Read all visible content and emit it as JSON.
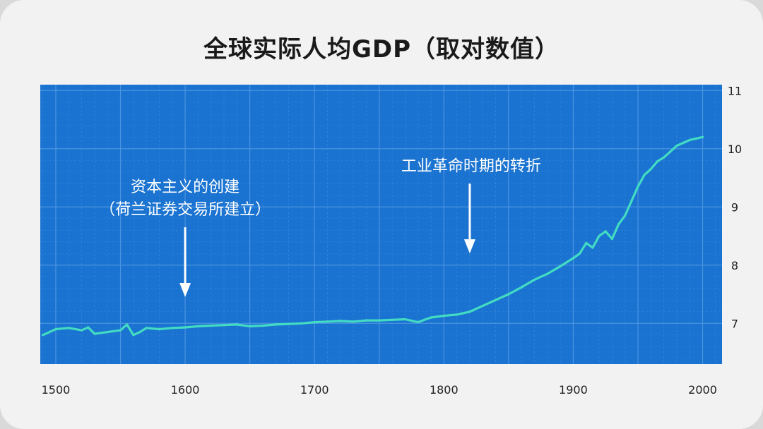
{
  "colors": {
    "plot_bg": "#1a73d0",
    "grid": "#4f97e3",
    "line": "#43dcc3"
  },
  "chart_data": {
    "type": "line",
    "title": "全球实际人均GDP（取对数值）",
    "xlabel": "",
    "ylabel": "",
    "xlim": [
      1488,
      2015
    ],
    "ylim": [
      6.3,
      11.1
    ],
    "x_ticks": [
      1500,
      1600,
      1700,
      1800,
      1900,
      2000
    ],
    "y_ticks": [
      7,
      8,
      9,
      10,
      11
    ],
    "grid": true,
    "y_axis_side": "right",
    "series": [
      {
        "x": [
          1490,
          1500,
          1510,
          1520,
          1525,
          1530,
          1540,
          1550,
          1555,
          1560,
          1565,
          1570,
          1580,
          1590,
          1600,
          1610,
          1620,
          1630,
          1640,
          1650,
          1660,
          1670,
          1680,
          1690,
          1700,
          1710,
          1720,
          1730,
          1740,
          1750,
          1760,
          1770,
          1780,
          1785,
          1790,
          1800,
          1810,
          1820,
          1830,
          1840,
          1850,
          1860,
          1870,
          1880,
          1890,
          1900,
          1905,
          1910,
          1915,
          1920,
          1925,
          1930,
          1935,
          1940,
          1945,
          1950,
          1955,
          1960,
          1965,
          1970,
          1975,
          1980,
          1985,
          1990,
          2000
        ],
        "y": [
          6.8,
          6.9,
          6.92,
          6.88,
          6.93,
          6.82,
          6.85,
          6.88,
          6.98,
          6.8,
          6.85,
          6.92,
          6.9,
          6.92,
          6.93,
          6.95,
          6.96,
          6.97,
          6.98,
          6.95,
          6.96,
          6.98,
          6.99,
          7.0,
          7.02,
          7.03,
          7.04,
          7.03,
          7.05,
          7.05,
          7.06,
          7.07,
          7.02,
          7.06,
          7.1,
          7.13,
          7.15,
          7.2,
          7.3,
          7.4,
          7.5,
          7.62,
          7.75,
          7.85,
          7.98,
          8.12,
          8.2,
          8.38,
          8.3,
          8.5,
          8.58,
          8.45,
          8.7,
          8.85,
          9.1,
          9.35,
          9.55,
          9.65,
          9.78,
          9.85,
          9.95,
          10.05,
          10.1,
          10.15,
          10.2
        ]
      }
    ],
    "annotations": [
      {
        "lines": [
          "资本主义的创建",
          "（荷兰证券交易所建立）"
        ],
        "arrow_x": 1600,
        "arrow_top_y": 8.65,
        "arrow_bottom_y": 7.5
      },
      {
        "lines": [
          "工业革命时期的转折"
        ],
        "arrow_x": 1820,
        "arrow_top_y": 9.4,
        "arrow_bottom_y": 8.25
      }
    ]
  }
}
